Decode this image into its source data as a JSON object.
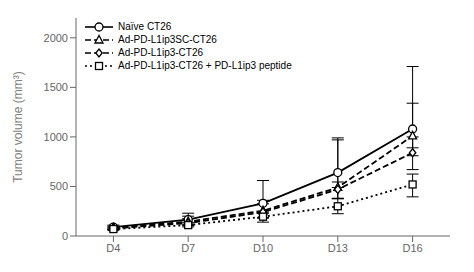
{
  "chart_data": {
    "type": "line",
    "x": [
      4,
      7,
      10,
      13,
      16
    ],
    "xlim": [
      2.5,
      17.5
    ],
    "xticks": [
      {
        "value": 4,
        "label": "D4"
      },
      {
        "value": 7,
        "label": "D7"
      },
      {
        "value": 10,
        "label": "D10"
      },
      {
        "value": 13,
        "label": "D13"
      },
      {
        "value": 16,
        "label": "D16"
      }
    ],
    "ylabel": "Tumor volume (mm³)",
    "ylim": [
      0,
      2200
    ],
    "yticks": [
      0,
      500,
      1000,
      1500,
      2000
    ],
    "grid": false,
    "legend": "upper left",
    "series": [
      {
        "name": "Naïve CT26",
        "color": "#000000",
        "marker": "circle",
        "line_style": "solid",
        "values": [
          90,
          165,
          330,
          640,
          1080
        ],
        "error_low": [
          20,
          45,
          100,
          150,
          190
        ],
        "error_high": [
          20,
          65,
          230,
          350,
          630
        ]
      },
      {
        "name": "Ad-PD-L1ip3SC-CT26",
        "color": "#000000",
        "marker": "triangle",
        "line_style": "dashed",
        "values": [
          85,
          145,
          255,
          490,
          1010
        ],
        "error_low": [
          15,
          35,
          75,
          110,
          200
        ],
        "error_high": [
          15,
          55,
          105,
          480,
          330
        ]
      },
      {
        "name": "Ad-PD-L1ip3-CT26",
        "color": "#000000",
        "marker": "diamond",
        "line_style": "dashed",
        "values": [
          78,
          130,
          240,
          470,
          840
        ],
        "error_low": [
          12,
          25,
          55,
          90,
          170
        ],
        "error_high": [
          12,
          45,
          85,
          75,
          160
        ]
      },
      {
        "name": "Ad-PD-L1ip3-CT26 + PD-L1ip3 peptide",
        "color": "#000000",
        "marker": "square",
        "line_style": "dotted",
        "values": [
          70,
          110,
          195,
          300,
          520
        ],
        "error_low": [
          12,
          18,
          55,
          75,
          125
        ],
        "error_high": [
          12,
          28,
          45,
          75,
          105
        ]
      }
    ]
  }
}
